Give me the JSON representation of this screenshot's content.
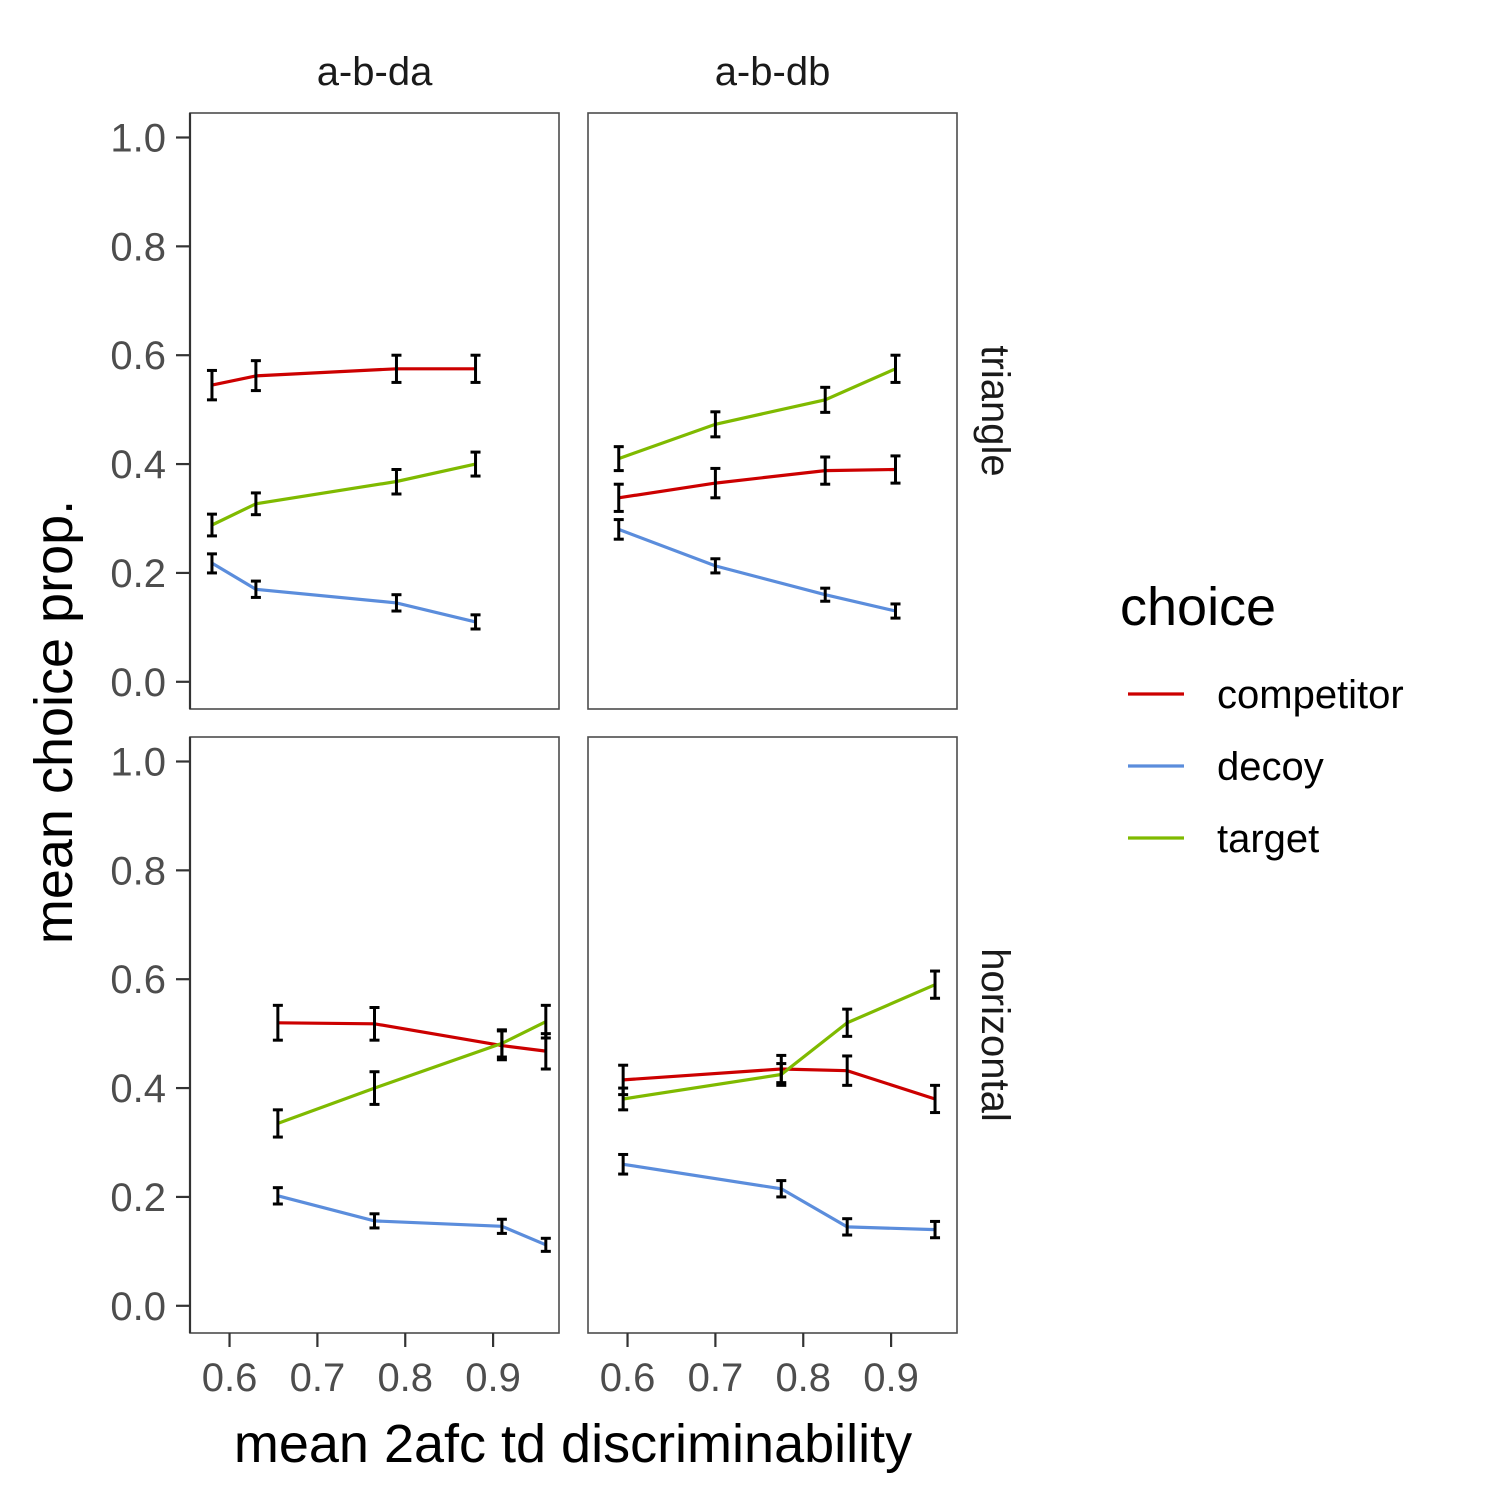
{
  "chart_data": {
    "type": "line",
    "xlabel": "mean 2afc td discriminability",
    "ylabel": "mean choice prop.",
    "xlim": [
      0.555,
      0.975
    ],
    "ylim": [
      -0.05,
      1.045
    ],
    "x_ticks": [
      0.6,
      0.7,
      0.8,
      0.9
    ],
    "x_tick_labels": [
      "0.6",
      "0.7",
      "0.8",
      "0.9"
    ],
    "y_ticks": [
      0.0,
      0.2,
      0.4,
      0.6,
      0.8,
      1.0
    ],
    "y_tick_labels": [
      "0.0",
      "0.2",
      "0.4",
      "0.6",
      "0.8",
      "1.0"
    ],
    "grid": false,
    "col_facets": [
      "a-b-da",
      "a-b-db"
    ],
    "row_facets": [
      "triangle",
      "horizontal"
    ],
    "legend": {
      "title": "choice",
      "placement": "right",
      "entries": [
        {
          "name": "competitor",
          "color": "#cc0000"
        },
        {
          "name": "decoy",
          "color": "#5b8ddc"
        },
        {
          "name": "target",
          "color": "#7fba00"
        }
      ]
    },
    "panels": [
      {
        "col": "a-b-da",
        "row": "triangle",
        "series": [
          {
            "name": "competitor",
            "x": [
              0.58,
              0.63,
              0.79,
              0.88
            ],
            "y": [
              0.545,
              0.562,
              0.575,
              0.575
            ],
            "lo": [
              0.518,
              0.535,
              0.55,
              0.55
            ],
            "hi": [
              0.572,
              0.59,
              0.6,
              0.6
            ]
          },
          {
            "name": "decoy",
            "x": [
              0.58,
              0.63,
              0.79,
              0.88
            ],
            "y": [
              0.218,
              0.17,
              0.145,
              0.11
            ],
            "lo": [
              0.2,
              0.155,
              0.13,
              0.097
            ],
            "hi": [
              0.235,
              0.185,
              0.16,
              0.123
            ]
          },
          {
            "name": "target",
            "x": [
              0.58,
              0.63,
              0.79,
              0.88
            ],
            "y": [
              0.288,
              0.327,
              0.368,
              0.4
            ],
            "lo": [
              0.268,
              0.307,
              0.345,
              0.378
            ],
            "hi": [
              0.308,
              0.347,
              0.39,
              0.422
            ]
          }
        ]
      },
      {
        "col": "a-b-db",
        "row": "triangle",
        "series": [
          {
            "name": "competitor",
            "x": [
              0.59,
              0.7,
              0.825,
              0.905
            ],
            "y": [
              0.338,
              0.365,
              0.388,
              0.39
            ],
            "lo": [
              0.313,
              0.338,
              0.363,
              0.365
            ],
            "hi": [
              0.363,
              0.392,
              0.413,
              0.415
            ]
          },
          {
            "name": "decoy",
            "x": [
              0.59,
              0.7,
              0.825,
              0.905
            ],
            "y": [
              0.28,
              0.213,
              0.16,
              0.13
            ],
            "lo": [
              0.262,
              0.2,
              0.148,
              0.117
            ],
            "hi": [
              0.298,
              0.226,
              0.172,
              0.143
            ]
          },
          {
            "name": "target",
            "x": [
              0.59,
              0.7,
              0.825,
              0.905
            ],
            "y": [
              0.41,
              0.473,
              0.518,
              0.575
            ],
            "lo": [
              0.388,
              0.45,
              0.495,
              0.55
            ],
            "hi": [
              0.432,
              0.496,
              0.541,
              0.6
            ]
          }
        ]
      },
      {
        "col": "a-b-da",
        "row": "horizontal",
        "series": [
          {
            "name": "competitor",
            "x": [
              0.655,
              0.765,
              0.91,
              0.96
            ],
            "y": [
              0.52,
              0.518,
              0.478,
              0.468
            ],
            "lo": [
              0.488,
              0.488,
              0.452,
              0.435
            ],
            "hi": [
              0.552,
              0.548,
              0.505,
              0.5
            ]
          },
          {
            "name": "decoy",
            "x": [
              0.655,
              0.765,
              0.91,
              0.96
            ],
            "y": [
              0.202,
              0.156,
              0.146,
              0.112
            ],
            "lo": [
              0.187,
              0.143,
              0.133,
              0.1
            ],
            "hi": [
              0.217,
              0.169,
              0.159,
              0.124
            ]
          },
          {
            "name": "target",
            "x": [
              0.655,
              0.765,
              0.91,
              0.96
            ],
            "y": [
              0.335,
              0.4,
              0.482,
              0.522
            ],
            "lo": [
              0.31,
              0.37,
              0.457,
              0.492
            ],
            "hi": [
              0.36,
              0.43,
              0.507,
              0.552
            ]
          }
        ]
      },
      {
        "col": "a-b-db",
        "row": "horizontal",
        "series": [
          {
            "name": "competitor",
            "x": [
              0.595,
              0.775,
              0.85,
              0.95
            ],
            "y": [
              0.415,
              0.435,
              0.432,
              0.38
            ],
            "lo": [
              0.388,
              0.41,
              0.405,
              0.355
            ],
            "hi": [
              0.442,
              0.46,
              0.459,
              0.405
            ]
          },
          {
            "name": "decoy",
            "x": [
              0.595,
              0.775,
              0.85,
              0.95
            ],
            "y": [
              0.26,
              0.215,
              0.145,
              0.14
            ],
            "lo": [
              0.242,
              0.2,
              0.13,
              0.125
            ],
            "hi": [
              0.278,
              0.23,
              0.16,
              0.155
            ]
          },
          {
            "name": "target",
            "x": [
              0.595,
              0.775,
              0.85,
              0.95
            ],
            "y": [
              0.38,
              0.425,
              0.52,
              0.59
            ],
            "lo": [
              0.36,
              0.405,
              0.495,
              0.565
            ],
            "hi": [
              0.4,
              0.445,
              0.545,
              0.615
            ]
          }
        ]
      }
    ]
  }
}
